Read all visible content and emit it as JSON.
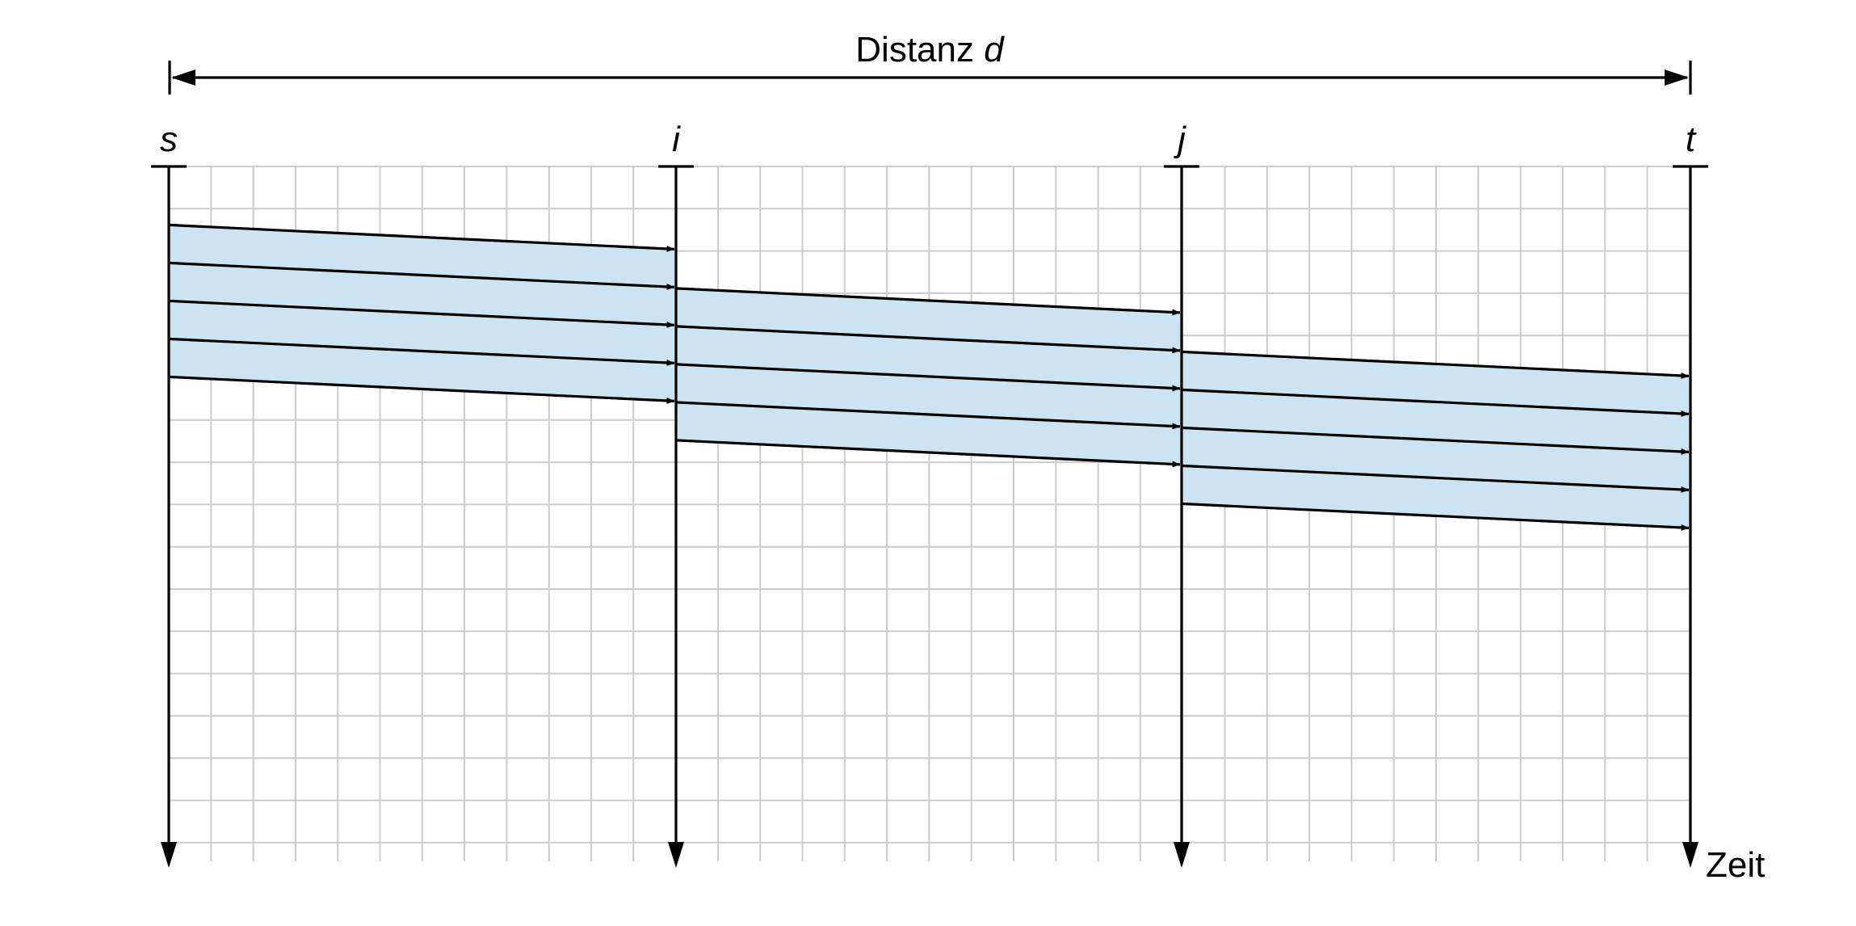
{
  "distance_label": {
    "prefix": "Distanz ",
    "variable": "d"
  },
  "nodes": [
    {
      "id": "s",
      "label": "s"
    },
    {
      "id": "i",
      "label": "i"
    },
    {
      "id": "j",
      "label": "j"
    },
    {
      "id": "t",
      "label": "t"
    }
  ],
  "time_axis_label": "Zeit",
  "hops": [
    {
      "from": "s",
      "to": "i",
      "packets": 5,
      "first_send_row": 1.5
    },
    {
      "from": "i",
      "to": "j",
      "packets": 5,
      "first_send_row": 3.0
    },
    {
      "from": "j",
      "to": "t",
      "packets": 5,
      "first_send_row": 4.5
    }
  ],
  "colors": {
    "band": "#cce3f1",
    "grid": "#cccccc",
    "ink": "#000000"
  }
}
